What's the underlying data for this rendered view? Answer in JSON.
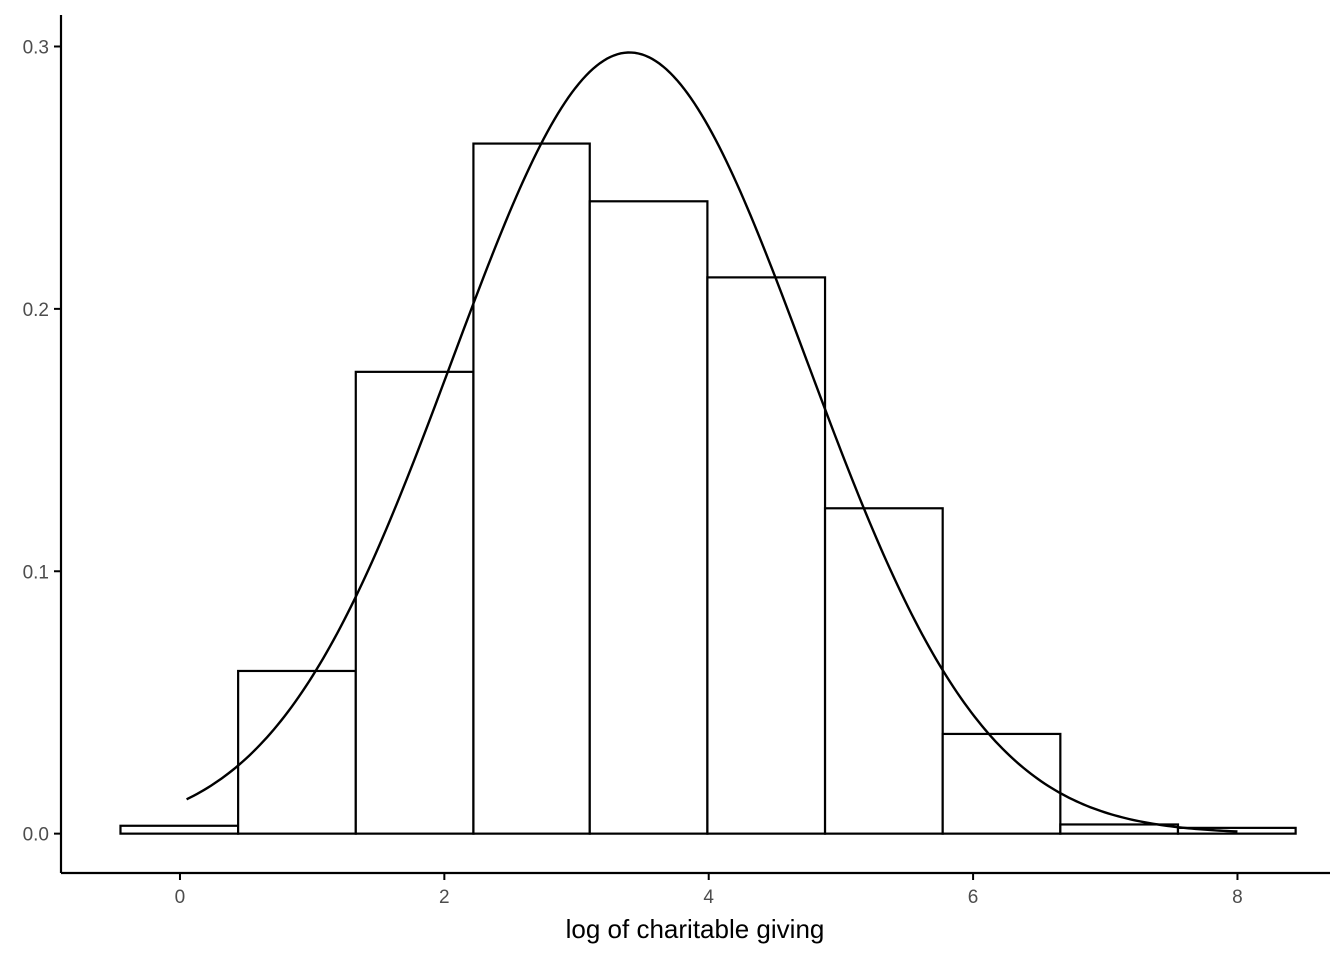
{
  "chart_data": {
    "type": "bar",
    "subtype": "histogram-with-density-curve",
    "title": "",
    "xlabel": "log of charitable giving",
    "ylabel": "",
    "xlim": [
      -0.9,
      8.7
    ],
    "ylim": [
      -0.015,
      0.312
    ],
    "grid": false,
    "legend": "none",
    "x_ticks": [
      0,
      2,
      4,
      6,
      8
    ],
    "x_tick_labels": [
      "0",
      "2",
      "4",
      "6",
      "8"
    ],
    "y_ticks": [
      0.0,
      0.1,
      0.2,
      0.3
    ],
    "y_tick_labels": [
      "0.0",
      "0.1",
      "0.2",
      "0.3"
    ],
    "bins": [
      {
        "start": -0.45,
        "end": 0.44,
        "density": 0.003
      },
      {
        "start": 0.44,
        "end": 1.33,
        "density": 0.062
      },
      {
        "start": 1.33,
        "end": 2.22,
        "density": 0.176
      },
      {
        "start": 2.22,
        "end": 3.1,
        "density": 0.263
      },
      {
        "start": 3.1,
        "end": 3.99,
        "density": 0.241
      },
      {
        "start": 3.99,
        "end": 4.88,
        "density": 0.212
      },
      {
        "start": 4.88,
        "end": 5.77,
        "density": 0.124
      },
      {
        "start": 5.77,
        "end": 6.66,
        "density": 0.038
      },
      {
        "start": 6.66,
        "end": 7.55,
        "density": 0.0035
      },
      {
        "start": 7.55,
        "end": 8.44,
        "density": 0.0022
      }
    ],
    "density_curve": {
      "distribution": "normal",
      "mean": 3.4,
      "sd": 1.34,
      "x_range": [
        0.05,
        8.0
      ]
    },
    "colors": {
      "bar_fill": "#ffffff",
      "bar_outline": "#000000",
      "curve": "#000000",
      "axis": "#000000",
      "tick_label": "#4d4d4d"
    }
  }
}
